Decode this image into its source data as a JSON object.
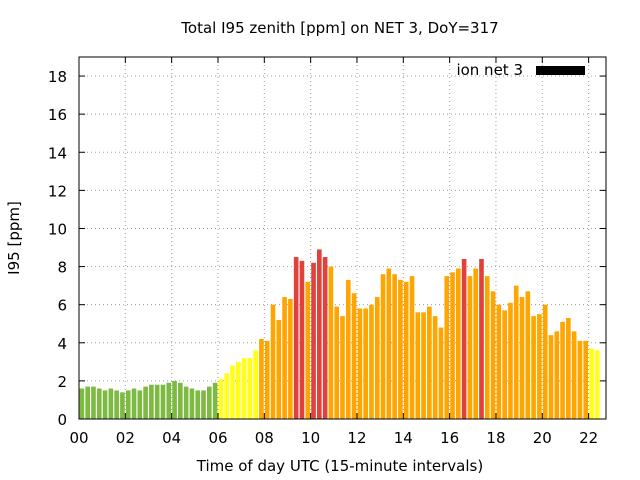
{
  "chart_data": {
    "type": "bar",
    "title": "Total I95 zenith [ppm] on NET 3, DoY=317",
    "xlabel": "Time of day UTC (15-minute intervals)",
    "ylabel": "I95 [ppm]",
    "xlim": [
      0,
      22.75
    ],
    "ylim": [
      0,
      19
    ],
    "xticks": [
      0,
      2,
      4,
      6,
      8,
      10,
      12,
      14,
      16,
      18,
      20,
      22
    ],
    "xtick_labels": [
      "00",
      "02",
      "04",
      "06",
      "08",
      "10",
      "12",
      "14",
      "16",
      "18",
      "20",
      "22"
    ],
    "yticks": [
      0,
      2,
      4,
      6,
      8,
      10,
      12,
      14,
      16,
      18
    ],
    "ytick_labels": [
      "0",
      "2",
      "4",
      "6",
      "8",
      "10",
      "12",
      "14",
      "16",
      "18"
    ],
    "grid": true,
    "legend": {
      "label": "ion net 3",
      "color": "#000000",
      "position": "top-right"
    },
    "interval_hours": 0.25,
    "colors": {
      "green": "#7cba41",
      "yellow": "#ffff1a",
      "orange": "#ffa500",
      "red": "#e0413a"
    },
    "values": [
      1.6,
      1.7,
      1.7,
      1.6,
      1.5,
      1.6,
      1.5,
      1.4,
      1.5,
      1.6,
      1.5,
      1.7,
      1.8,
      1.8,
      1.8,
      1.9,
      2.0,
      1.9,
      1.7,
      1.6,
      1.5,
      1.5,
      1.7,
      1.9,
      2.1,
      2.4,
      2.8,
      3.0,
      3.2,
      3.2,
      3.6,
      4.2,
      4.1,
      6.0,
      5.2,
      6.4,
      6.3,
      8.5,
      8.3,
      7.2,
      8.2,
      8.9,
      8.5,
      8.0,
      5.9,
      5.4,
      7.3,
      6.6,
      5.8,
      5.8,
      6.0,
      6.4,
      7.6,
      7.9,
      7.6,
      7.3,
      7.2,
      7.5,
      5.6,
      5.6,
      5.9,
      5.4,
      4.8,
      7.5,
      7.7,
      7.9,
      8.4,
      7.5,
      7.9,
      8.4,
      7.5,
      6.7,
      6.0,
      5.7,
      6.1,
      7.0,
      6.4,
      6.7,
      5.4,
      5.5,
      6.0,
      4.4,
      4.6,
      5.1,
      5.3,
      4.6,
      4.1,
      4.1,
      3.7,
      3.6
    ],
    "categories": [
      "green",
      "green",
      "green",
      "green",
      "green",
      "green",
      "green",
      "green",
      "green",
      "green",
      "green",
      "green",
      "green",
      "green",
      "green",
      "green",
      "green",
      "green",
      "green",
      "green",
      "green",
      "green",
      "green",
      "green",
      "yellow",
      "yellow",
      "yellow",
      "yellow",
      "yellow",
      "yellow",
      "yellow",
      "orange",
      "orange",
      "orange",
      "orange",
      "orange",
      "orange",
      "red",
      "red",
      "orange",
      "red",
      "red",
      "red",
      "orange",
      "orange",
      "orange",
      "orange",
      "orange",
      "orange",
      "orange",
      "orange",
      "orange",
      "orange",
      "orange",
      "orange",
      "orange",
      "orange",
      "orange",
      "orange",
      "orange",
      "orange",
      "orange",
      "orange",
      "orange",
      "orange",
      "orange",
      "red",
      "orange",
      "orange",
      "red",
      "orange",
      "orange",
      "orange",
      "orange",
      "orange",
      "orange",
      "orange",
      "orange",
      "orange",
      "orange",
      "orange",
      "orange",
      "orange",
      "orange",
      "orange",
      "orange",
      "orange",
      "orange",
      "yellow",
      "yellow"
    ]
  }
}
